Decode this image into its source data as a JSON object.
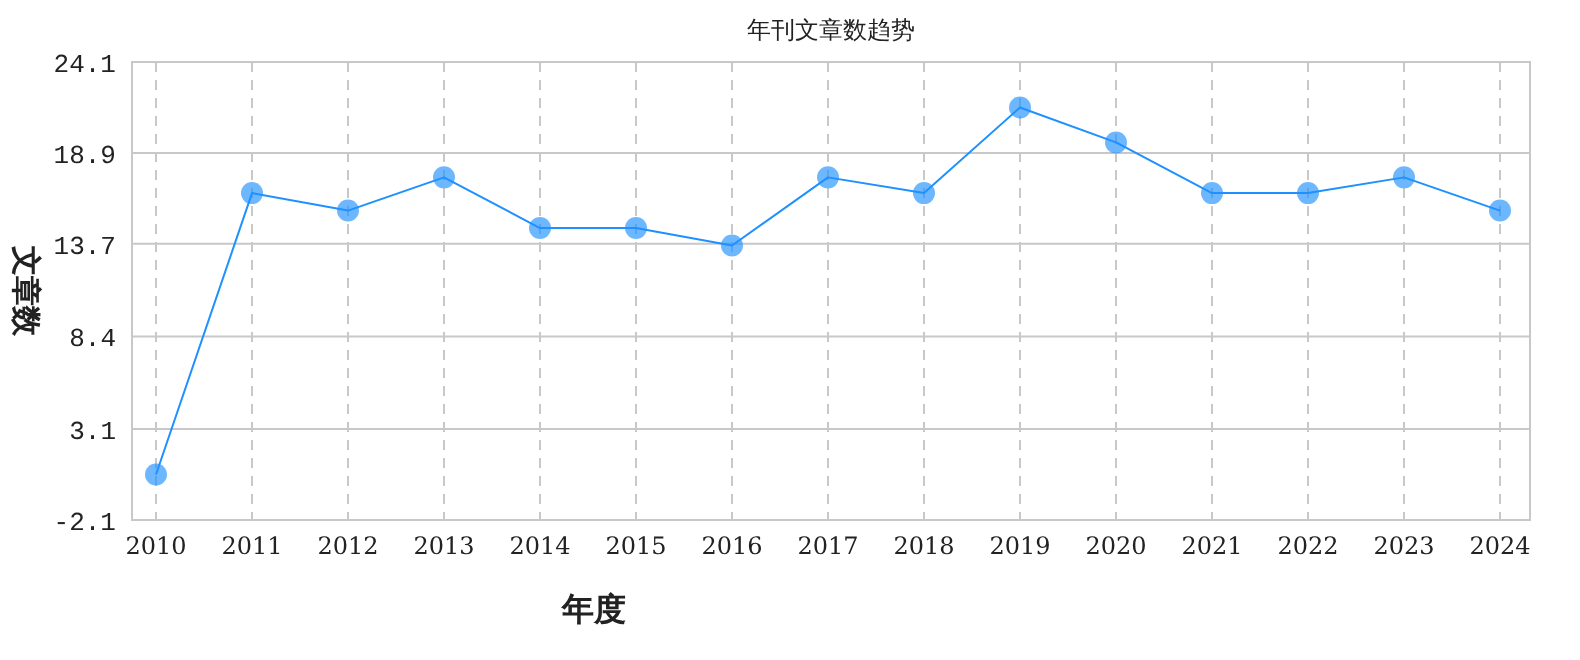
{
  "chart_data": {
    "type": "line",
    "title": "年刊文章数趋势",
    "xlabel": "年度",
    "ylabel": "文章数",
    "categories": [
      "2010",
      "2011",
      "2012",
      "2013",
      "2014",
      "2015",
      "2016",
      "2017",
      "2018",
      "2019",
      "2020",
      "2021",
      "2022",
      "2023",
      "2024"
    ],
    "series": [
      {
        "color": "#1e90ff",
        "values": [
          0.5,
          16.6,
          15.6,
          17.5,
          14.6,
          14.6,
          13.6,
          17.5,
          16.6,
          21.5,
          19.5,
          16.6,
          16.6,
          17.5,
          15.6
        ]
      }
    ],
    "ylim": [
      -2.1,
      24.1
    ],
    "yticks": [
      -2.1,
      3.1,
      8.4,
      13.7,
      18.9,
      24.1
    ],
    "grid": true,
    "marker": "circle",
    "line_style": "solid"
  }
}
